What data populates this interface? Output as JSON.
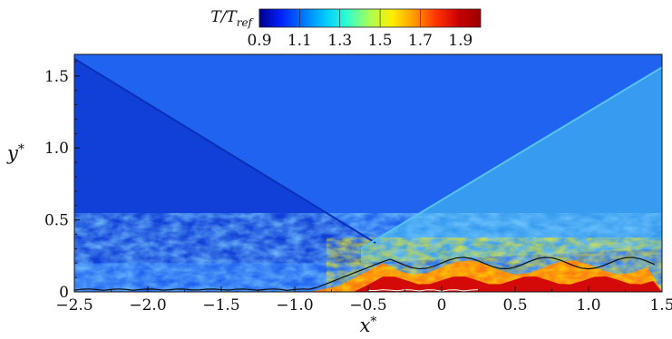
{
  "chart_data": {
    "type": "heatmap",
    "title": "",
    "colorbar": {
      "label_main": "T/T",
      "label_sub": "ref",
      "ticks": [
        "0.9",
        "1.1",
        "1.3",
        "1.5",
        "1.7",
        "1.9"
      ],
      "range": [
        0.9,
        2.0
      ],
      "colormap": [
        "#00008f",
        "#0022ff",
        "#0077ff",
        "#00ccff",
        "#33ffcc",
        "#aaff55",
        "#ffee00",
        "#ff9900",
        "#ff3300",
        "#cc0000",
        "#990000"
      ]
    },
    "xlabel_main": "x",
    "xlabel_sup": "*",
    "ylabel_main": "y",
    "ylabel_sup": "*",
    "xlim": [
      -2.5,
      1.5
    ],
    "ylim": [
      0,
      1.65
    ],
    "xticks": [
      -2.5,
      -2.0,
      -1.5,
      -1.0,
      -0.5,
      0,
      0.5,
      1.0,
      1.5
    ],
    "xtick_labels": [
      "−2.5",
      "−2.0",
      "−1.5",
      "−1.0",
      "−0.5",
      "0",
      "0.5",
      "1.0",
      "1.5"
    ],
    "yticks": [
      0,
      0.5,
      1.0,
      1.5
    ],
    "ytick_labels": [
      "0",
      "0.5",
      "1.0",
      "1.5"
    ],
    "features": {
      "incident_shock": {
        "x_start": -2.5,
        "y_start": 1.62,
        "x_end": -0.45,
        "y_end": 0.34
      },
      "reflected_shock": {
        "x_start": -0.55,
        "y_start": 0.3,
        "x_end": 1.5,
        "y_end": 1.56
      },
      "separation_contour_x": [
        -0.5,
        0.25
      ]
    }
  }
}
